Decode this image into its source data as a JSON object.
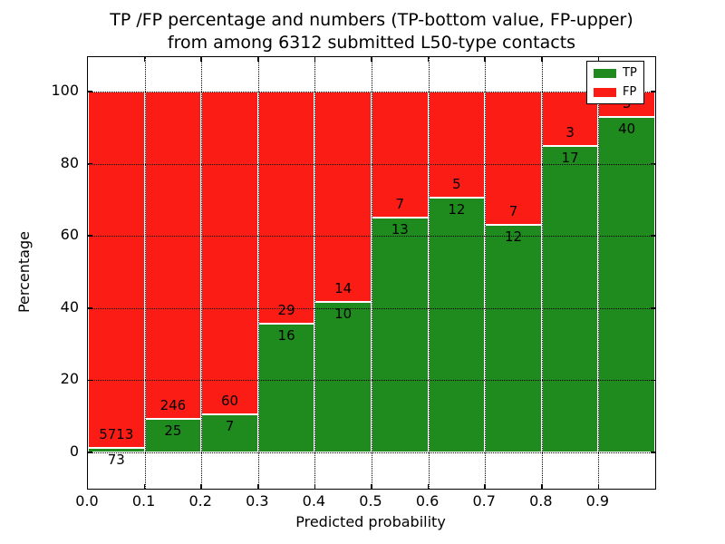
{
  "figure": {
    "title_line1": "TP /FP percentage and numbers (TP-bottom value, FP-upper)",
    "title_line2": "from among 6312 submitted L50-type contacts",
    "xlabel": "Predicted probability",
    "ylabel": "Percentage"
  },
  "legend": {
    "items": [
      {
        "label": "TP",
        "color": "#1f8b1f"
      },
      {
        "label": "FP",
        "color": "#fb1d15"
      }
    ]
  },
  "chart_data": {
    "type": "bar",
    "stacked": true,
    "normalized_to_percent": true,
    "title": "TP /FP percentage and numbers (TP-bottom value, FP-upper) from among 6312 submitted L50-type contacts",
    "xlabel": "Predicted probability",
    "ylabel": "Percentage",
    "total_contacts": 6312,
    "x_bin_edges": [
      0.0,
      0.1,
      0.2,
      0.3,
      0.4,
      0.5,
      0.6,
      0.7,
      0.8,
      0.9,
      1.0
    ],
    "x_tick_labels": [
      "0.0",
      "0.1",
      "0.2",
      "0.3",
      "0.4",
      "0.5",
      "0.6",
      "0.7",
      "0.8",
      "0.9"
    ],
    "y_ticks": [
      0,
      20,
      40,
      60,
      80,
      100
    ],
    "y_tick_labels": [
      "0",
      "20",
      "40",
      "60",
      "80",
      "100"
    ],
    "ylim": [
      -10,
      110
    ],
    "grid": "dotted",
    "legend_position": "upper right",
    "series": [
      {
        "name": "TP",
        "color": "#1f8b1f",
        "counts": [
          73,
          25,
          7,
          16,
          10,
          13,
          12,
          12,
          17,
          40
        ]
      },
      {
        "name": "FP",
        "color": "#fb1d15",
        "counts": [
          5713,
          246,
          60,
          29,
          14,
          7,
          5,
          7,
          3,
          3
        ]
      }
    ]
  }
}
